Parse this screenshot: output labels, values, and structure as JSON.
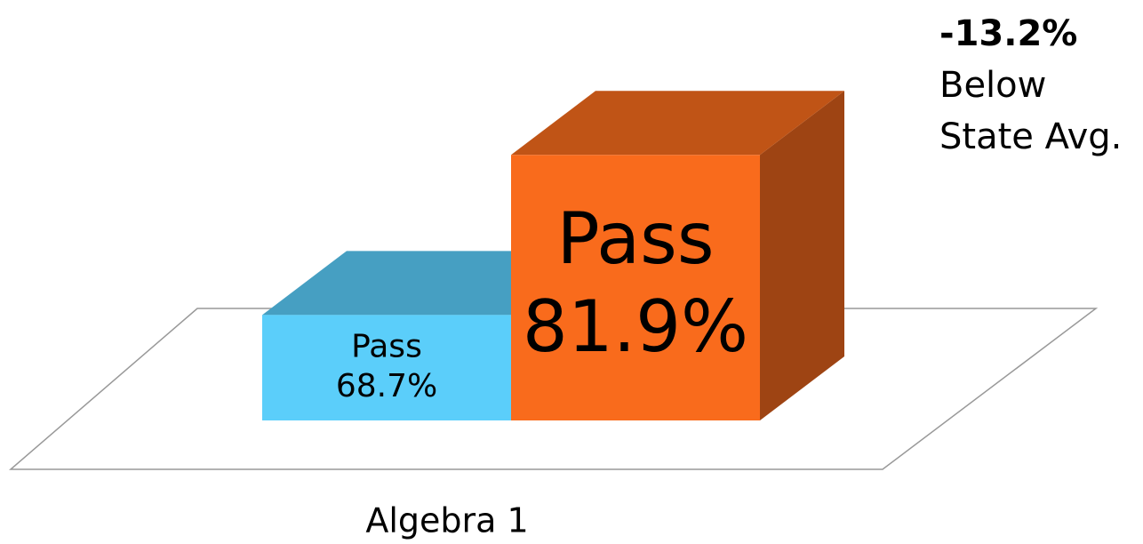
{
  "chart_data": {
    "type": "bar3d",
    "categories": [
      "Algebra 1"
    ],
    "series": [
      {
        "name": "Pass",
        "color": "#5bcefa",
        "top_color": "#469fc2",
        "side_color": "#3a86a3",
        "values": [
          68.7
        ],
        "value_labels": [
          "68.7%"
        ]
      },
      {
        "name": "Pass",
        "color": "#f96b1c",
        "top_color": "#c05416",
        "side_color": "#9e4413",
        "values": [
          81.9
        ],
        "value_labels": [
          "81.9%"
        ]
      }
    ],
    "ylim": [
      60,
      85
    ],
    "annotation": [
      "-13.2%",
      "Below",
      "State Avg."
    ]
  }
}
